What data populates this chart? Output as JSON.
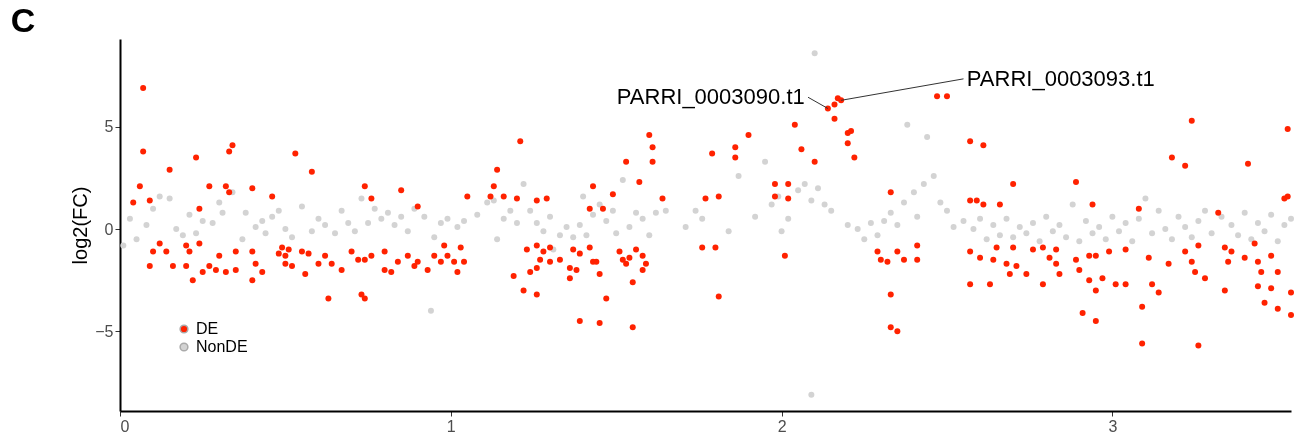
{
  "chart_data": {
    "type": "scatter",
    "title": "C",
    "ylabel": "log2(FC)",
    "xlim": [
      0,
      3.54
    ],
    "ylim": [
      -8.9,
      9.3
    ],
    "xticks": [
      0,
      1,
      2,
      3
    ],
    "yticks": [
      -5,
      0,
      5
    ],
    "grid": false,
    "legend": "bottom left",
    "marker": "circle",
    "annotations": [
      {
        "text": "PARRI_0003090.t1",
        "x": 2.14,
        "y": 5.9
      },
      {
        "text": "PARRI_0003093.t1",
        "x": 2.18,
        "y": 6.3
      }
    ],
    "series": [
      {
        "name": "DE",
        "color": "#ff2200",
        "x": [
          0.07,
          0.07,
          0.06,
          0.04,
          0.09,
          0.15,
          0.23,
          0.33,
          0.34,
          0.32,
          0.33,
          0.24,
          0.27,
          0.4,
          0.53,
          0.58,
          0.46,
          0.74,
          0.85,
          0.9,
          0.76,
          0.24,
          0.12,
          0.1,
          0.09,
          0.14,
          0.16,
          0.2,
          0.21,
          0.2,
          0.25,
          0.22,
          0.27,
          0.29,
          0.3,
          0.32,
          0.35,
          0.35,
          0.4,
          0.41,
          0.4,
          0.43,
          0.48,
          0.49,
          0.5,
          0.51,
          0.5,
          0.52,
          0.55,
          0.56,
          0.57,
          0.6,
          0.62,
          0.64,
          0.63,
          0.67,
          0.7,
          0.72,
          0.74,
          0.73,
          0.74,
          0.76,
          0.8,
          0.8,
          0.82,
          0.84,
          0.87,
          0.89,
          0.9,
          0.93,
          0.95,
          0.97,
          0.98,
          0.99,
          1.01,
          1.02,
          1.03,
          1.04,
          1.05,
          1.21,
          1.14,
          1.13,
          1.12,
          1.16,
          1.2,
          1.26,
          1.29,
          1.23,
          1.26,
          1.28,
          1.3,
          1.27,
          1.3,
          1.26,
          1.24,
          1.19,
          1.22,
          1.26,
          1.33,
          1.37,
          1.36,
          1.39,
          1.38,
          1.36,
          1.42,
          1.43,
          1.44,
          1.45,
          1.47,
          1.39,
          1.45,
          1.55,
          1.51,
          1.52,
          1.53,
          1.54,
          1.56,
          1.58,
          1.59,
          1.58,
          1.55,
          1.42,
          1.46,
          1.43,
          1.49,
          1.57,
          1.53,
          1.6,
          1.61,
          1.61,
          1.64,
          1.76,
          1.8,
          1.77,
          1.81,
          1.79,
          1.81,
          1.86,
          1.86,
          1.9,
          1.98,
          1.98,
          2.02,
          2.02,
          2.01,
          2.04,
          2.06,
          2.1,
          2.14,
          2.16,
          2.16,
          2.18,
          2.17,
          2.2,
          2.21,
          2.2,
          2.22,
          2.33,
          2.29,
          2.3,
          2.32,
          2.33,
          2.33,
          2.47,
          2.5,
          2.35,
          2.35,
          2.37,
          2.41,
          2.41,
          2.57,
          2.61,
          2.57,
          2.59,
          2.61,
          2.66,
          2.7,
          2.57,
          2.6,
          2.57,
          2.63,
          2.64,
          2.65,
          2.68,
          2.69,
          2.7,
          2.71,
          2.74,
          2.76,
          2.79,
          2.79,
          2.81,
          2.83,
          2.84,
          2.83,
          2.89,
          2.89,
          2.9,
          2.93,
          2.93,
          2.95,
          2.94,
          2.95,
          2.91,
          2.95,
          2.97,
          2.99,
          3.01,
          3.04,
          3.04,
          3.08,
          3.09,
          3.09,
          3.11,
          3.12,
          3.14,
          3.17,
          3.18,
          3.22,
          3.24,
          3.22,
          3.24,
          3.25,
          3.26,
          3.28,
          3.26,
          3.32,
          3.34,
          3.35,
          3.36,
          3.34,
          3.4,
          3.41,
          3.43,
          3.44,
          3.45,
          3.44,
          3.48,
          3.48,
          3.5,
          3.46,
          3.5,
          3.52,
          3.53,
          3.53,
          3.54,
          3.54
        ],
        "values": [
          6.9,
          3.8,
          2.1,
          1.3,
          1.4,
          2.9,
          3.5,
          3.8,
          4.1,
          2.1,
          1.8,
          1.0,
          2.1,
          2.0,
          3.7,
          2.8,
          1.6,
          2.1,
          1.9,
          1.1,
          1.5,
          -0.7,
          -0.7,
          -1.1,
          -1.8,
          -1.1,
          -1.8,
          -0.8,
          -1.1,
          -1.8,
          -2.1,
          -2.5,
          -1.8,
          -2.0,
          -1.3,
          -2.1,
          -2.0,
          -1.1,
          -1.1,
          -1.7,
          -2.5,
          -2.1,
          -1.2,
          -0.9,
          -1.3,
          -1.0,
          -1.7,
          -1.8,
          -1.1,
          -2.2,
          -1.2,
          -1.7,
          -1.3,
          -1.7,
          -3.4,
          -2.0,
          -1.1,
          -1.5,
          -1.5,
          -3.2,
          -3.4,
          -1.3,
          -1.1,
          -2.0,
          -2.1,
          -1.6,
          -1.3,
          -1.8,
          -1.6,
          -2.0,
          -1.3,
          -1.6,
          -0.8,
          -1.3,
          -1.6,
          -2.1,
          -0.9,
          -1.6,
          1.6,
          4.3,
          2.9,
          2.1,
          1.6,
          1.6,
          1.5,
          1.4,
          1.5,
          -1.0,
          -0.8,
          -1.1,
          -0.9,
          -1.5,
          -1.6,
          -1.9,
          -2.1,
          -2.3,
          -3.0,
          -3.2,
          -1.5,
          -1.0,
          -1.9,
          -1.2,
          -2.0,
          -2.4,
          -0.9,
          -1.6,
          -1.6,
          -2.2,
          -3.4,
          -4.5,
          -4.6,
          -4.8,
          -1.1,
          -1.5,
          -1.7,
          -1.4,
          -1.0,
          -1.3,
          -1.7,
          -2.0,
          -2.6,
          1.0,
          1.0,
          2.1,
          1.7,
          2.3,
          3.3,
          4.6,
          4.0,
          3.3,
          1.5,
          -0.9,
          -0.9,
          1.5,
          1.6,
          3.7,
          -3.3,
          4.0,
          3.5,
          4.6,
          2.2,
          1.6,
          2.2,
          1.5,
          -1.3,
          5.1,
          3.9,
          3.3,
          5.9,
          5.4,
          6.1,
          6.3,
          6.4,
          4.7,
          4.8,
          4.2,
          3.5,
          1.8,
          -1.1,
          -1.5,
          -1.6,
          -3.2,
          -4.8,
          6.5,
          6.5,
          -5.0,
          -1.1,
          -1.5,
          -0.8,
          -1.5,
          4.3,
          4.1,
          1.4,
          1.4,
          1.2,
          1.2,
          2.2,
          -1.1,
          -1.4,
          -2.7,
          -2.7,
          -1.5,
          -0.9,
          -1.7,
          -2.2,
          -0.9,
          -1.8,
          -2.2,
          -1.0,
          -0.9,
          -2.7,
          -1.4,
          -1.7,
          -2.2,
          -1.0,
          2.3,
          -1.5,
          -2.0,
          -2.5,
          -1.3,
          -1.3,
          1.2,
          -3.0,
          -4.1,
          -4.5,
          -2.4,
          -1.1,
          -2.7,
          -1.0,
          -2.7,
          1.0,
          -3.8,
          -5.6,
          -1.4,
          -2.7,
          -3.1,
          -1.7,
          3.5,
          3.1,
          5.3,
          -1.1,
          -1.6,
          -2.1,
          -0.8,
          -2.4,
          -5.7,
          0.8,
          -0.9,
          -1.6,
          -1.1,
          -3.0,
          -1.4,
          3.2,
          -0.7,
          -1.6,
          -2.1,
          -2.8,
          -1.3,
          -2.9,
          -2.1,
          -3.6,
          -3.9,
          1.5,
          1.6,
          4.9,
          -3.1,
          -4.2
        ]
      },
      {
        "name": "NonDE",
        "color": "#d3d3d3",
        "x": [
          0.01,
          0.03,
          0.05,
          0.08,
          0.1,
          0.12,
          0.15,
          0.17,
          0.19,
          0.21,
          0.23,
          0.25,
          0.28,
          0.3,
          0.31,
          0.34,
          0.37,
          0.38,
          0.41,
          0.43,
          0.44,
          0.46,
          0.48,
          0.5,
          0.52,
          0.55,
          0.58,
          0.6,
          0.62,
          0.65,
          0.67,
          0.69,
          0.71,
          0.73,
          0.75,
          0.77,
          0.79,
          0.81,
          0.83,
          0.85,
          0.87,
          0.89,
          0.94,
          0.92,
          0.95,
          0.97,
          0.99,
          1.02,
          1.04,
          1.08,
          1.11,
          1.13,
          1.14,
          1.16,
          1.18,
          1.2,
          1.22,
          1.24,
          1.26,
          1.28,
          1.3,
          1.31,
          1.33,
          1.35,
          1.37,
          1.39,
          1.4,
          1.41,
          1.43,
          1.45,
          1.47,
          1.49,
          1.5,
          1.52,
          1.54,
          1.56,
          1.58,
          1.6,
          1.62,
          1.65,
          1.71,
          1.74,
          1.76,
          1.84,
          1.87,
          1.92,
          1.95,
          1.97,
          1.99,
          2.0,
          2.02,
          2.05,
          2.07,
          2.09,
          2.1,
          2.09,
          2.11,
          2.13,
          2.15,
          2.2,
          2.23,
          2.25,
          2.27,
          2.29,
          2.31,
          2.33,
          2.35,
          2.37,
          2.38,
          2.4,
          2.41,
          2.43,
          2.44,
          2.46,
          2.48,
          2.5,
          2.52,
          2.55,
          2.58,
          2.6,
          2.62,
          2.64,
          2.66,
          2.68,
          2.7,
          2.72,
          2.74,
          2.76,
          2.78,
          2.8,
          2.82,
          2.84,
          2.86,
          2.88,
          2.9,
          2.92,
          2.94,
          2.96,
          2.98,
          3.0,
          3.02,
          3.04,
          3.06,
          3.08,
          3.1,
          3.12,
          3.14,
          3.16,
          3.18,
          3.2,
          3.22,
          3.24,
          3.26,
          3.28,
          3.3,
          3.33,
          3.36,
          3.38,
          3.4,
          3.42,
          3.44,
          3.46,
          3.48,
          3.5,
          3.52,
          3.54
        ],
        "values": [
          -0.8,
          0.5,
          -0.5,
          0.2,
          1.0,
          1.6,
          1.5,
          0.0,
          -0.3,
          0.7,
          -0.2,
          0.4,
          0.3,
          1.3,
          0.8,
          1.8,
          -0.5,
          0.8,
          0.1,
          0.4,
          -0.2,
          0.6,
          0.9,
          0.0,
          -0.4,
          1.1,
          -0.1,
          0.5,
          0.2,
          -0.2,
          0.9,
          0.3,
          -0.1,
          1.5,
          0.3,
          1.0,
          0.5,
          0.8,
          0.2,
          0.6,
          -0.1,
          1.0,
          -4.0,
          0.6,
          -0.4,
          0.3,
          0.5,
          0.1,
          0.4,
          0.7,
          1.3,
          1.4,
          -0.5,
          0.5,
          0.9,
          0.3,
          2.2,
          0.9,
          0.3,
          -0.1,
          0.6,
          -1.0,
          -0.3,
          0.1,
          -0.4,
          0.2,
          1.6,
          -0.3,
          0.7,
          1.2,
          0.4,
          0.9,
          -0.2,
          2.4,
          0.1,
          0.8,
          0.5,
          -0.3,
          0.8,
          0.9,
          0.1,
          0.9,
          0.5,
          -0.1,
          2.6,
          0.6,
          3.3,
          1.2,
          1.6,
          -0.1,
          0.5,
          1.9,
          2.2,
          1.4,
          8.6,
          -8.1,
          2.0,
          1.2,
          0.9,
          0.2,
          0.0,
          -0.5,
          0.3,
          -0.3,
          0.4,
          0.8,
          0.2,
          1.3,
          5.1,
          1.8,
          0.6,
          2.2,
          4.5,
          2.6,
          1.3,
          0.9,
          0.1,
          0.4,
          0.0,
          0.5,
          -0.5,
          0.2,
          -0.3,
          0.5,
          -0.4,
          0.1,
          -0.2,
          0.3,
          -0.6,
          0.6,
          -0.1,
          0.2,
          -0.4,
          1.2,
          -0.6,
          0.4,
          -0.2,
          0.1,
          -0.5,
          0.6,
          -0.1,
          0.3,
          -0.6,
          0.5,
          1.5,
          -0.2,
          0.9,
          0.0,
          -0.5,
          0.6,
          0.1,
          -0.4,
          0.4,
          0.9,
          -0.2,
          0.6,
          0.2,
          -0.3,
          0.8,
          -0.5,
          0.3,
          -0.1,
          0.7,
          -0.6,
          0.2,
          0.5
        ]
      }
    ]
  }
}
